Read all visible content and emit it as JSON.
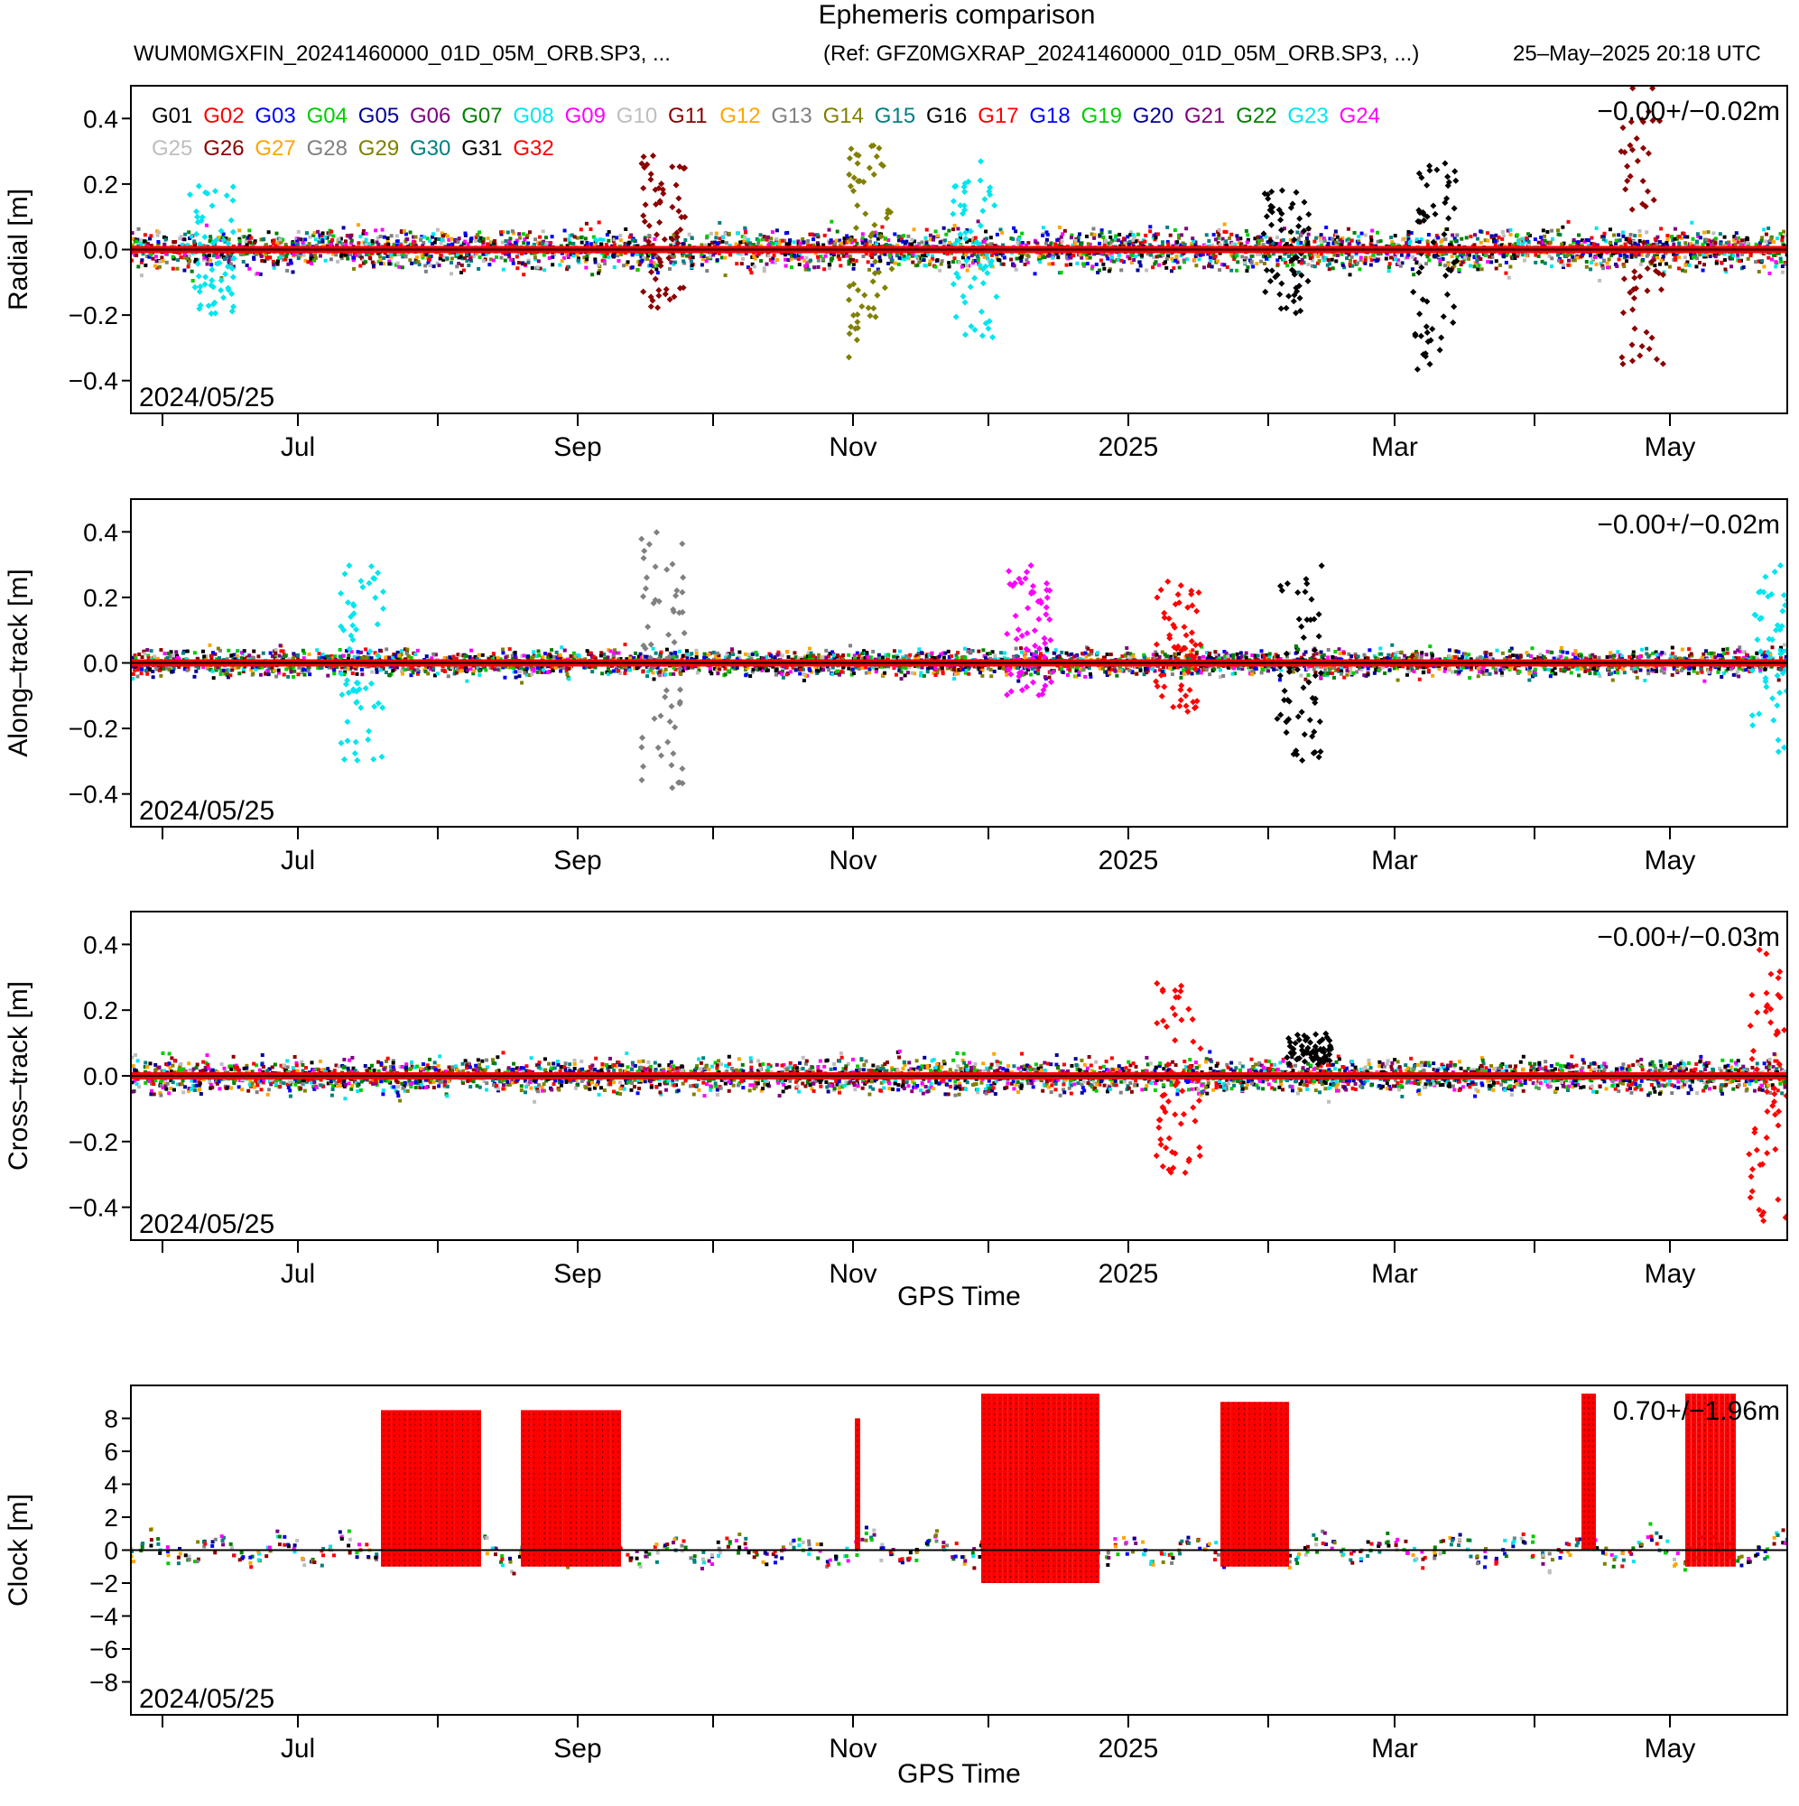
{
  "header": {
    "title": "Ephemeris comparison",
    "file": "WUM0MGXFIN_20241460000_01D_05M_ORB.SP3, ...",
    "reference": "(Ref: GFZ0MGXRAP_20241460000_01D_05M_ORB.SP3, ...)",
    "generated": "25–May–2025 20:18 UTC"
  },
  "legend": [
    {
      "name": "G01",
      "color": "#000000"
    },
    {
      "name": "G02",
      "color": "#ff0000"
    },
    {
      "name": "G03",
      "color": "#0000ff"
    },
    {
      "name": "G04",
      "color": "#00cc00"
    },
    {
      "name": "G05",
      "color": "#000099"
    },
    {
      "name": "G06",
      "color": "#800080"
    },
    {
      "name": "G07",
      "color": "#008000"
    },
    {
      "name": "G08",
      "color": "#00e5ee"
    },
    {
      "name": "G09",
      "color": "#ff00ff"
    },
    {
      "name": "G10",
      "color": "#bebebe"
    },
    {
      "name": "G11",
      "color": "#8b0000"
    },
    {
      "name": "G12",
      "color": "#ffa500"
    },
    {
      "name": "G13",
      "color": "#808080"
    },
    {
      "name": "G14",
      "color": "#808000"
    },
    {
      "name": "G15",
      "color": "#008080"
    },
    {
      "name": "G16",
      "color": "#000000"
    },
    {
      "name": "G17",
      "color": "#ff0000"
    },
    {
      "name": "G18",
      "color": "#0000ff"
    },
    {
      "name": "G19",
      "color": "#00cc00"
    },
    {
      "name": "G20",
      "color": "#000099"
    },
    {
      "name": "G21",
      "color": "#800080"
    },
    {
      "name": "G22",
      "color": "#008000"
    },
    {
      "name": "G23",
      "color": "#00e5ee"
    },
    {
      "name": "G24",
      "color": "#ff00ff"
    },
    {
      "name": "G25",
      "color": "#bebebe"
    },
    {
      "name": "G26",
      "color": "#8b0000"
    },
    {
      "name": "G27",
      "color": "#ffa500"
    },
    {
      "name": "G28",
      "color": "#808080"
    },
    {
      "name": "G29",
      "color": "#808000"
    },
    {
      "name": "G30",
      "color": "#008080"
    },
    {
      "name": "G31",
      "color": "#000000"
    },
    {
      "name": "G32",
      "color": "#ff0000"
    }
  ],
  "chart_data": [
    {
      "type": "scatter",
      "ylabel": "Radial [m]",
      "ylim": [
        -0.5,
        0.5
      ],
      "yticks": [
        "0.4",
        "0.2",
        "0.0",
        "−0.2",
        "−0.4"
      ],
      "xticks": [
        "Jul",
        "Sep",
        "Nov",
        "2025",
        "Mar",
        "May"
      ],
      "start_label": "2024/05/25",
      "stats": "−0.00+/−0.02m",
      "xlabel": "",
      "typical_spread_m": 0.03,
      "excursions": [
        {
          "date": "2024-06-12",
          "center": 0.0,
          "amp": 0.2,
          "color": "#00e5ee"
        },
        {
          "date": "2024-09-20",
          "center": 0.05,
          "amp": 0.25,
          "color": "#8b0000"
        },
        {
          "date": "2024-11-05",
          "center": 0.0,
          "amp": 0.33,
          "color": "#808000"
        },
        {
          "date": "2024-11-28",
          "center": 0.0,
          "amp": 0.28,
          "color": "#00e5ee"
        },
        {
          "date": "2025-02-05",
          "center": 0.0,
          "amp": 0.2,
          "color": "#000000"
        },
        {
          "date": "2025-03-10",
          "center": -0.05,
          "amp": 0.32,
          "color": "#000000"
        },
        {
          "date": "2025-04-25",
          "center": 0.1,
          "amp": 0.45,
          "color": "#8b0000"
        }
      ]
    },
    {
      "type": "scatter",
      "ylabel": "Along–track [m]",
      "ylim": [
        -0.5,
        0.5
      ],
      "yticks": [
        "0.4",
        "0.2",
        "0.0",
        "−0.2",
        "−0.4"
      ],
      "xticks": [
        "Jul",
        "Sep",
        "Nov",
        "2025",
        "Mar",
        "May"
      ],
      "start_label": "2024/05/25",
      "stats": "−0.00+/−0.02m",
      "xlabel": "",
      "typical_spread_m": 0.02,
      "excursions": [
        {
          "date": "2024-07-15",
          "center": 0.0,
          "amp": 0.3,
          "color": "#00e5ee"
        },
        {
          "date": "2024-09-20",
          "center": 0.0,
          "amp": 0.4,
          "color": "#808080"
        },
        {
          "date": "2024-12-10",
          "center": 0.1,
          "amp": 0.2,
          "color": "#ff00ff"
        },
        {
          "date": "2025-01-12",
          "center": 0.05,
          "amp": 0.2,
          "color": "#ff0000"
        },
        {
          "date": "2025-02-08",
          "center": 0.0,
          "amp": 0.3,
          "color": "#000000"
        },
        {
          "date": "2025-05-24",
          "center": 0.0,
          "amp": 0.3,
          "color": "#00e5ee"
        }
      ]
    },
    {
      "type": "scatter",
      "ylabel": "Cross–track [m]",
      "ylim": [
        -0.5,
        0.5
      ],
      "yticks": [
        "0.4",
        "0.2",
        "0.0",
        "−0.2",
        "−0.4"
      ],
      "xticks": [
        "Jul",
        "Sep",
        "Nov",
        "2025",
        "Mar",
        "May"
      ],
      "start_label": "2024/05/25",
      "stats": "−0.00+/−0.03m",
      "xlabel": "GPS Time",
      "typical_spread_m": 0.025,
      "excursions": [
        {
          "date": "2025-01-12",
          "center": 0.0,
          "amp": 0.3,
          "color": "#ff0000"
        },
        {
          "date": "2025-02-10",
          "center": 0.08,
          "amp": 0.05,
          "color": "#000000"
        },
        {
          "date": "2025-05-23",
          "center": 0.0,
          "amp": 0.45,
          "color": "#ff0000"
        }
      ]
    },
    {
      "type": "scatter",
      "ylabel": "Clock [m]",
      "ylim": [
        -10,
        10
      ],
      "yticks": [
        "8",
        "6",
        "4",
        "2",
        "0",
        "−2",
        "−4",
        "−6",
        "−8"
      ],
      "xticks": [
        "Jul",
        "Sep",
        "Nov",
        "2025",
        "Mar",
        "May"
      ],
      "start_label": "2024/05/25",
      "stats": "0.70+/−1.96m",
      "xlabel": "GPS Time",
      "typical_spread_m": 1.0,
      "spike_periods": [
        {
          "from": "2024-07-20",
          "to": "2024-08-10",
          "min": -1,
          "max": 8.5
        },
        {
          "from": "2024-08-20",
          "to": "2024-09-10",
          "min": -1,
          "max": 8.5
        },
        {
          "from": "2024-11-02",
          "to": "2024-11-02",
          "min": 0,
          "max": 8.0
        },
        {
          "from": "2024-11-30",
          "to": "2024-12-25",
          "min": -2,
          "max": 9.5
        },
        {
          "from": "2025-01-22",
          "to": "2025-02-05",
          "min": -1,
          "max": 9.0
        },
        {
          "from": "2025-04-12",
          "to": "2025-04-14",
          "min": 0,
          "max": 9.5
        },
        {
          "from": "2025-05-05",
          "to": "2025-05-15",
          "min": -1,
          "max": 9.5
        }
      ]
    }
  ]
}
